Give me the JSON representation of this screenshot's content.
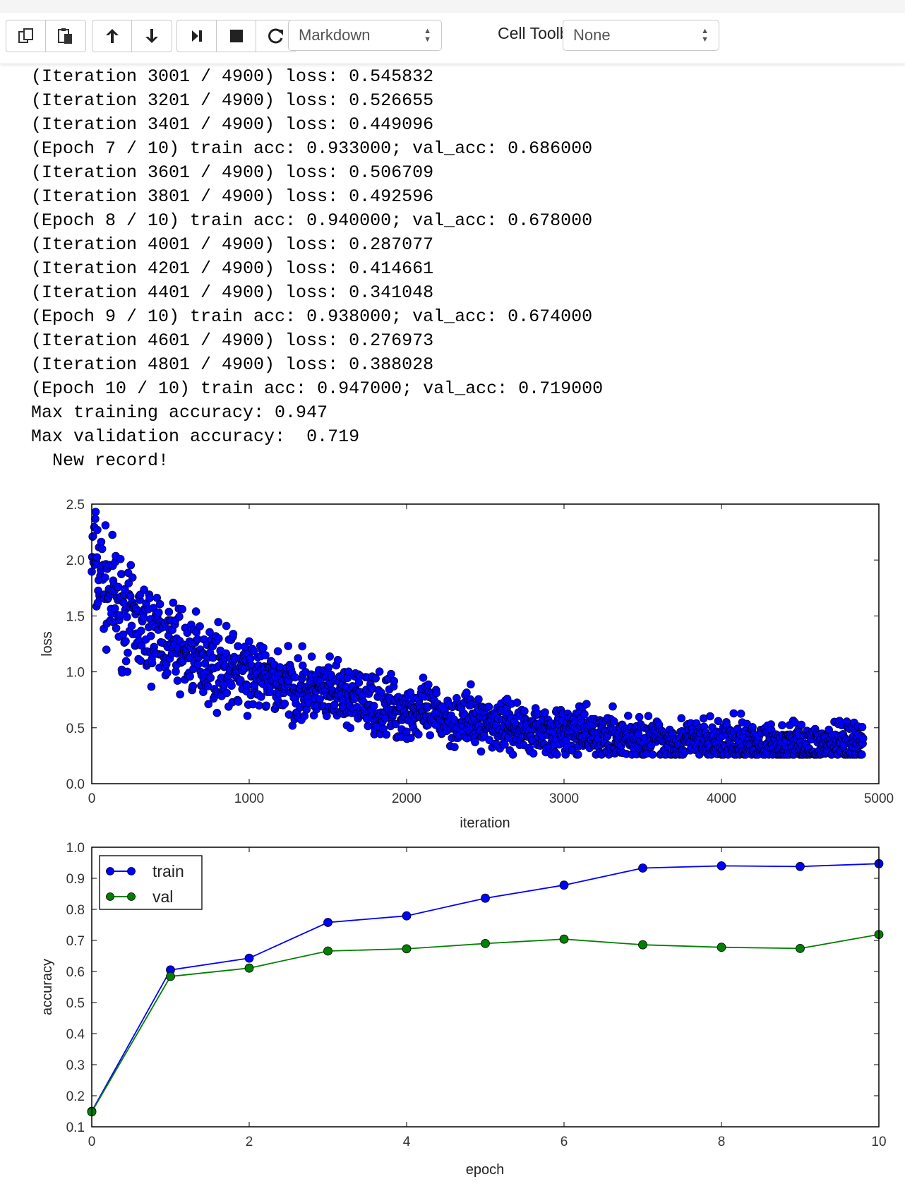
{
  "toolbar": {
    "cell_type_value": "Markdown",
    "cell_toolbar_label": "Cell Toolbar:",
    "cell_toolbar_value": "None"
  },
  "output_lines": [
    "(Iteration 3001 / 4900) loss: 0.545832",
    "(Iteration 3201 / 4900) loss: 0.526655",
    "(Iteration 3401 / 4900) loss: 0.449096",
    "(Epoch 7 / 10) train acc: 0.933000; val_acc: 0.686000",
    "(Iteration 3601 / 4900) loss: 0.506709",
    "(Iteration 3801 / 4900) loss: 0.492596",
    "(Epoch 8 / 10) train acc: 0.940000; val_acc: 0.678000",
    "(Iteration 4001 / 4900) loss: 0.287077",
    "(Iteration 4201 / 4900) loss: 0.414661",
    "(Iteration 4401 / 4900) loss: 0.341048",
    "(Epoch 9 / 10) train acc: 0.938000; val_acc: 0.674000",
    "(Iteration 4601 / 4900) loss: 0.276973",
    "(Iteration 4801 / 4900) loss: 0.388028",
    "(Epoch 10 / 10) train acc: 0.947000; val_acc: 0.719000",
    "Max training accuracy: 0.947",
    "Max validation accuracy:  0.719",
    "  New record!"
  ],
  "chart_data": [
    {
      "type": "scatter",
      "xlabel": "iteration",
      "ylabel": "loss",
      "xlim": [
        0,
        5000
      ],
      "ylim": [
        0.0,
        2.5
      ],
      "xticks": [
        "0",
        "1000",
        "2000",
        "3000",
        "4000",
        "5000"
      ],
      "yticks": [
        "0.0",
        "0.5",
        "1.0",
        "1.5",
        "2.0",
        "2.5"
      ],
      "marker_color": "#0000ff",
      "series_trend": {
        "x": [
          0,
          100,
          250,
          500,
          750,
          1000,
          1250,
          1500,
          1750,
          2000,
          2250,
          2500,
          2750,
          3000,
          3250,
          3500,
          3750,
          4000,
          4250,
          4500,
          4750,
          4900
        ],
        "y": [
          2.05,
          1.72,
          1.45,
          1.25,
          1.08,
          0.97,
          0.88,
          0.8,
          0.72,
          0.66,
          0.6,
          0.55,
          0.5,
          0.46,
          0.43,
          0.4,
          0.38,
          0.37,
          0.36,
          0.35,
          0.34,
          0.34
        ]
      },
      "point_count": 4900
    },
    {
      "type": "line",
      "xlabel": "epoch",
      "ylabel": "accuracy",
      "xlim": [
        0,
        10
      ],
      "ylim": [
        0.1,
        1.0
      ],
      "xticks": [
        "0",
        "2",
        "4",
        "6",
        "8",
        "10"
      ],
      "yticks": [
        "0.1",
        "0.2",
        "0.3",
        "0.4",
        "0.5",
        "0.6",
        "0.7",
        "0.8",
        "0.9",
        "1.0"
      ],
      "legend_position": "top-left",
      "x": [
        0,
        1,
        2,
        3,
        4,
        5,
        6,
        7,
        8,
        9,
        10
      ],
      "series": [
        {
          "name": "train",
          "color": "#0000ff",
          "values": [
            0.15,
            0.605,
            0.643,
            0.758,
            0.779,
            0.836,
            0.878,
            0.933,
            0.94,
            0.938,
            0.947
          ]
        },
        {
          "name": "val",
          "color": "#008000",
          "values": [
            0.148,
            0.584,
            0.611,
            0.666,
            0.673,
            0.69,
            0.704,
            0.686,
            0.678,
            0.674,
            0.719
          ]
        }
      ]
    }
  ]
}
